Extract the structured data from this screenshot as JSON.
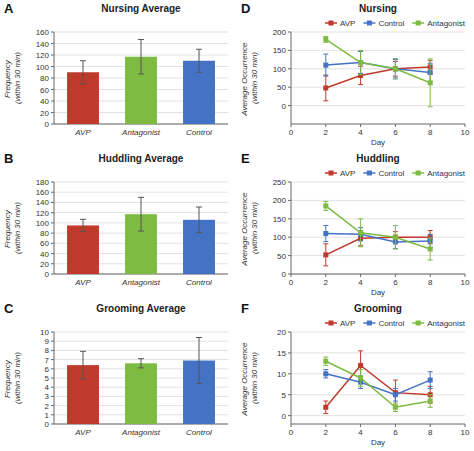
{
  "chart_data": [
    {
      "type": "bar",
      "title": "Nursing Average",
      "annotations": [
        "A"
      ],
      "categories": [
        "AVP",
        "Antagonist",
        "Control"
      ],
      "values": [
        90,
        117,
        110
      ],
      "errors": [
        20,
        30,
        20
      ],
      "colors": [
        "#c0392b",
        "#7dbb42",
        "#4472c4"
      ],
      "ylabel": "Frequency (within 30 min)",
      "ylim": [
        0,
        160
      ],
      "yticks": [
        0,
        20,
        40,
        60,
        80,
        100,
        120,
        140,
        160
      ],
      "grid": true
    },
    {
      "type": "bar",
      "title": "Huddling Average",
      "annotations": [
        "B"
      ],
      "categories": [
        "AVP",
        "Antagonist",
        "Control"
      ],
      "values": [
        95,
        117,
        106
      ],
      "errors": [
        12,
        33,
        25
      ],
      "colors": [
        "#c0392b",
        "#7dbb42",
        "#4472c4"
      ],
      "ylabel": "Frequency (within 30 min)",
      "ylim": [
        0,
        180
      ],
      "yticks": [
        0,
        20,
        40,
        60,
        80,
        100,
        120,
        140,
        160,
        180
      ],
      "grid": true
    },
    {
      "type": "bar",
      "title": "Grooming Average",
      "annotations": [
        "C"
      ],
      "categories": [
        "AVP",
        "Antagonist",
        "Control"
      ],
      "values": [
        6.4,
        6.6,
        6.9
      ],
      "errors": [
        1.5,
        0.5,
        2.5
      ],
      "colors": [
        "#c0392b",
        "#7dbb42",
        "#4472c4"
      ],
      "ylabel": "Frequency (within 30 min)",
      "ylim": [
        0,
        10
      ],
      "yticks": [
        0,
        1,
        2,
        3,
        4,
        5,
        6,
        7,
        8,
        9,
        10
      ],
      "grid": true
    },
    {
      "type": "line",
      "title": "Nursing",
      "annotations": [
        "D"
      ],
      "x": [
        2,
        4,
        6,
        8
      ],
      "series": [
        {
          "name": "AVP",
          "color": "#c0392b",
          "marker": "square",
          "values": [
            48,
            82,
            100,
            105
          ],
          "errors": [
            35,
            25,
            20,
            18
          ]
        },
        {
          "name": "Control",
          "color": "#4472c4",
          "marker": "square",
          "values": [
            110,
            117,
            100,
            90
          ],
          "errors": [
            30,
            30,
            25,
            25
          ]
        },
        {
          "name": "Antagonist",
          "color": "#7dbb42",
          "marker": "square",
          "values": [
            180,
            117,
            100,
            62
          ],
          "errors": [
            8,
            33,
            28,
            65
          ]
        }
      ],
      "xlabel": "Day",
      "ylabel": "Average Occurrence (within 30 min)",
      "xlim": [
        0,
        10
      ],
      "xticks": [
        0,
        2,
        4,
        6,
        8,
        10
      ],
      "ylim": [
        -50,
        200
      ],
      "yticks": [
        0,
        50,
        100,
        150,
        200
      ],
      "grid": true,
      "legend": "upper right"
    },
    {
      "type": "line",
      "title": "Huddling",
      "annotations": [
        "E"
      ],
      "x": [
        2,
        4,
        6,
        8
      ],
      "series": [
        {
          "name": "AVP",
          "color": "#c0392b",
          "marker": "square",
          "values": [
            52,
            97,
            100,
            100
          ],
          "errors": [
            30,
            20,
            15,
            18
          ]
        },
        {
          "name": "Control",
          "color": "#4472c4",
          "marker": "square",
          "values": [
            110,
            108,
            87,
            90
          ],
          "errors": [
            22,
            18,
            18,
            18
          ]
        },
        {
          "name": "Antagonist",
          "color": "#7dbb42",
          "marker": "square",
          "values": [
            185,
            112,
            100,
            68
          ],
          "errors": [
            12,
            38,
            32,
            30
          ]
        }
      ],
      "xlabel": "Day",
      "ylabel": "Average Occurrence (within 30 min)",
      "xlim": [
        0,
        10
      ],
      "xticks": [
        0,
        2,
        4,
        6,
        8,
        10
      ],
      "ylim": [
        0,
        250
      ],
      "yticks": [
        0,
        50,
        100,
        150,
        200,
        250
      ],
      "grid": true,
      "legend": "upper right"
    },
    {
      "type": "line",
      "title": "Grooming",
      "annotations": [
        "F"
      ],
      "x": [
        2,
        4,
        6,
        8
      ],
      "series": [
        {
          "name": "AVP",
          "color": "#c0392b",
          "marker": "square",
          "values": [
            2,
            12,
            5.5,
            5
          ],
          "errors": [
            1.5,
            3.5,
            3.0,
            2.0
          ]
        },
        {
          "name": "Control",
          "color": "#4472c4",
          "marker": "square",
          "values": [
            10,
            8,
            5,
            8.5
          ],
          "errors": [
            1.0,
            1.5,
            1.5,
            2.0
          ]
        },
        {
          "name": "Antagonist",
          "color": "#7dbb42",
          "marker": "square",
          "values": [
            13,
            9,
            2,
            3.5
          ],
          "errors": [
            1.0,
            2.0,
            1.0,
            1.5
          ]
        }
      ],
      "xlabel": "Day",
      "ylabel": "Average Occurrence (within 30 min)",
      "xlim": [
        0,
        10
      ],
      "xticks": [
        0,
        2,
        4,
        6,
        8,
        10
      ],
      "ylim": [
        -2,
        20
      ],
      "yticks": [
        0,
        5,
        10,
        15,
        20
      ],
      "grid": true,
      "legend": "upper right"
    }
  ]
}
